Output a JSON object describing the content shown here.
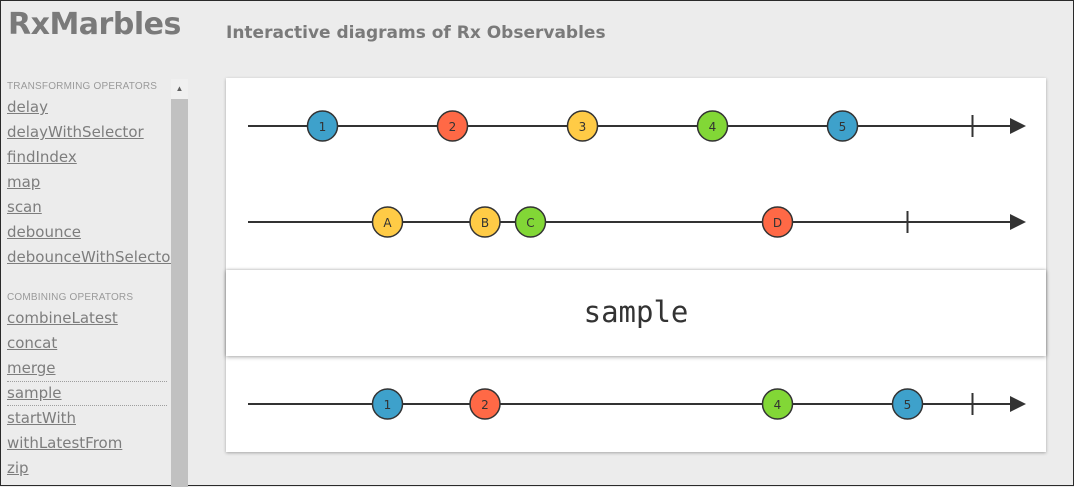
{
  "header": {
    "title": "RxMarbles",
    "subtitle": "Interactive diagrams of Rx Observables"
  },
  "sidebar": {
    "sections": [
      {
        "heading": "TRANSFORMING OPERATORS",
        "items": [
          "delay",
          "delayWithSelector",
          "findIndex",
          "map",
          "scan",
          "debounce",
          "debounceWithSelector"
        ]
      },
      {
        "heading": "COMBINING OPERATORS",
        "items": [
          "combineLatest",
          "concat",
          "merge",
          "sample",
          "startWith",
          "withLatestFrom",
          "zip"
        ]
      }
    ],
    "active_item": "sample"
  },
  "scrollbar": {
    "up_arrow": "▲"
  },
  "colors": {
    "blue": "#3ea1cb",
    "red": "#ff6946",
    "yellow": "#ffcb46",
    "green": "#82d736",
    "line": "#333333"
  },
  "diagram": {
    "operator_label": "sample",
    "timeline_range": [
      0,
      100
    ],
    "input_streams": [
      {
        "marbles": [
          {
            "label": "1",
            "time": 5,
            "color": "blue"
          },
          {
            "label": "2",
            "time": 25,
            "color": "red"
          },
          {
            "label": "3",
            "time": 45,
            "color": "yellow"
          },
          {
            "label": "4",
            "time": 65,
            "color": "green"
          },
          {
            "label": "5",
            "time": 85,
            "color": "blue"
          }
        ],
        "completion": 105
      },
      {
        "marbles": [
          {
            "label": "A",
            "time": 15,
            "color": "yellow"
          },
          {
            "label": "B",
            "time": 30,
            "color": "yellow"
          },
          {
            "label": "C",
            "time": 37,
            "color": "green"
          },
          {
            "label": "D",
            "time": 75,
            "color": "red"
          }
        ],
        "completion": 95
      }
    ],
    "output_stream": {
      "marbles": [
        {
          "label": "1",
          "time": 15,
          "color": "blue"
        },
        {
          "label": "2",
          "time": 30,
          "color": "red"
        },
        {
          "label": "4",
          "time": 75,
          "color": "green"
        },
        {
          "label": "5",
          "time": 95,
          "color": "blue"
        }
      ],
      "completion": 105
    }
  }
}
